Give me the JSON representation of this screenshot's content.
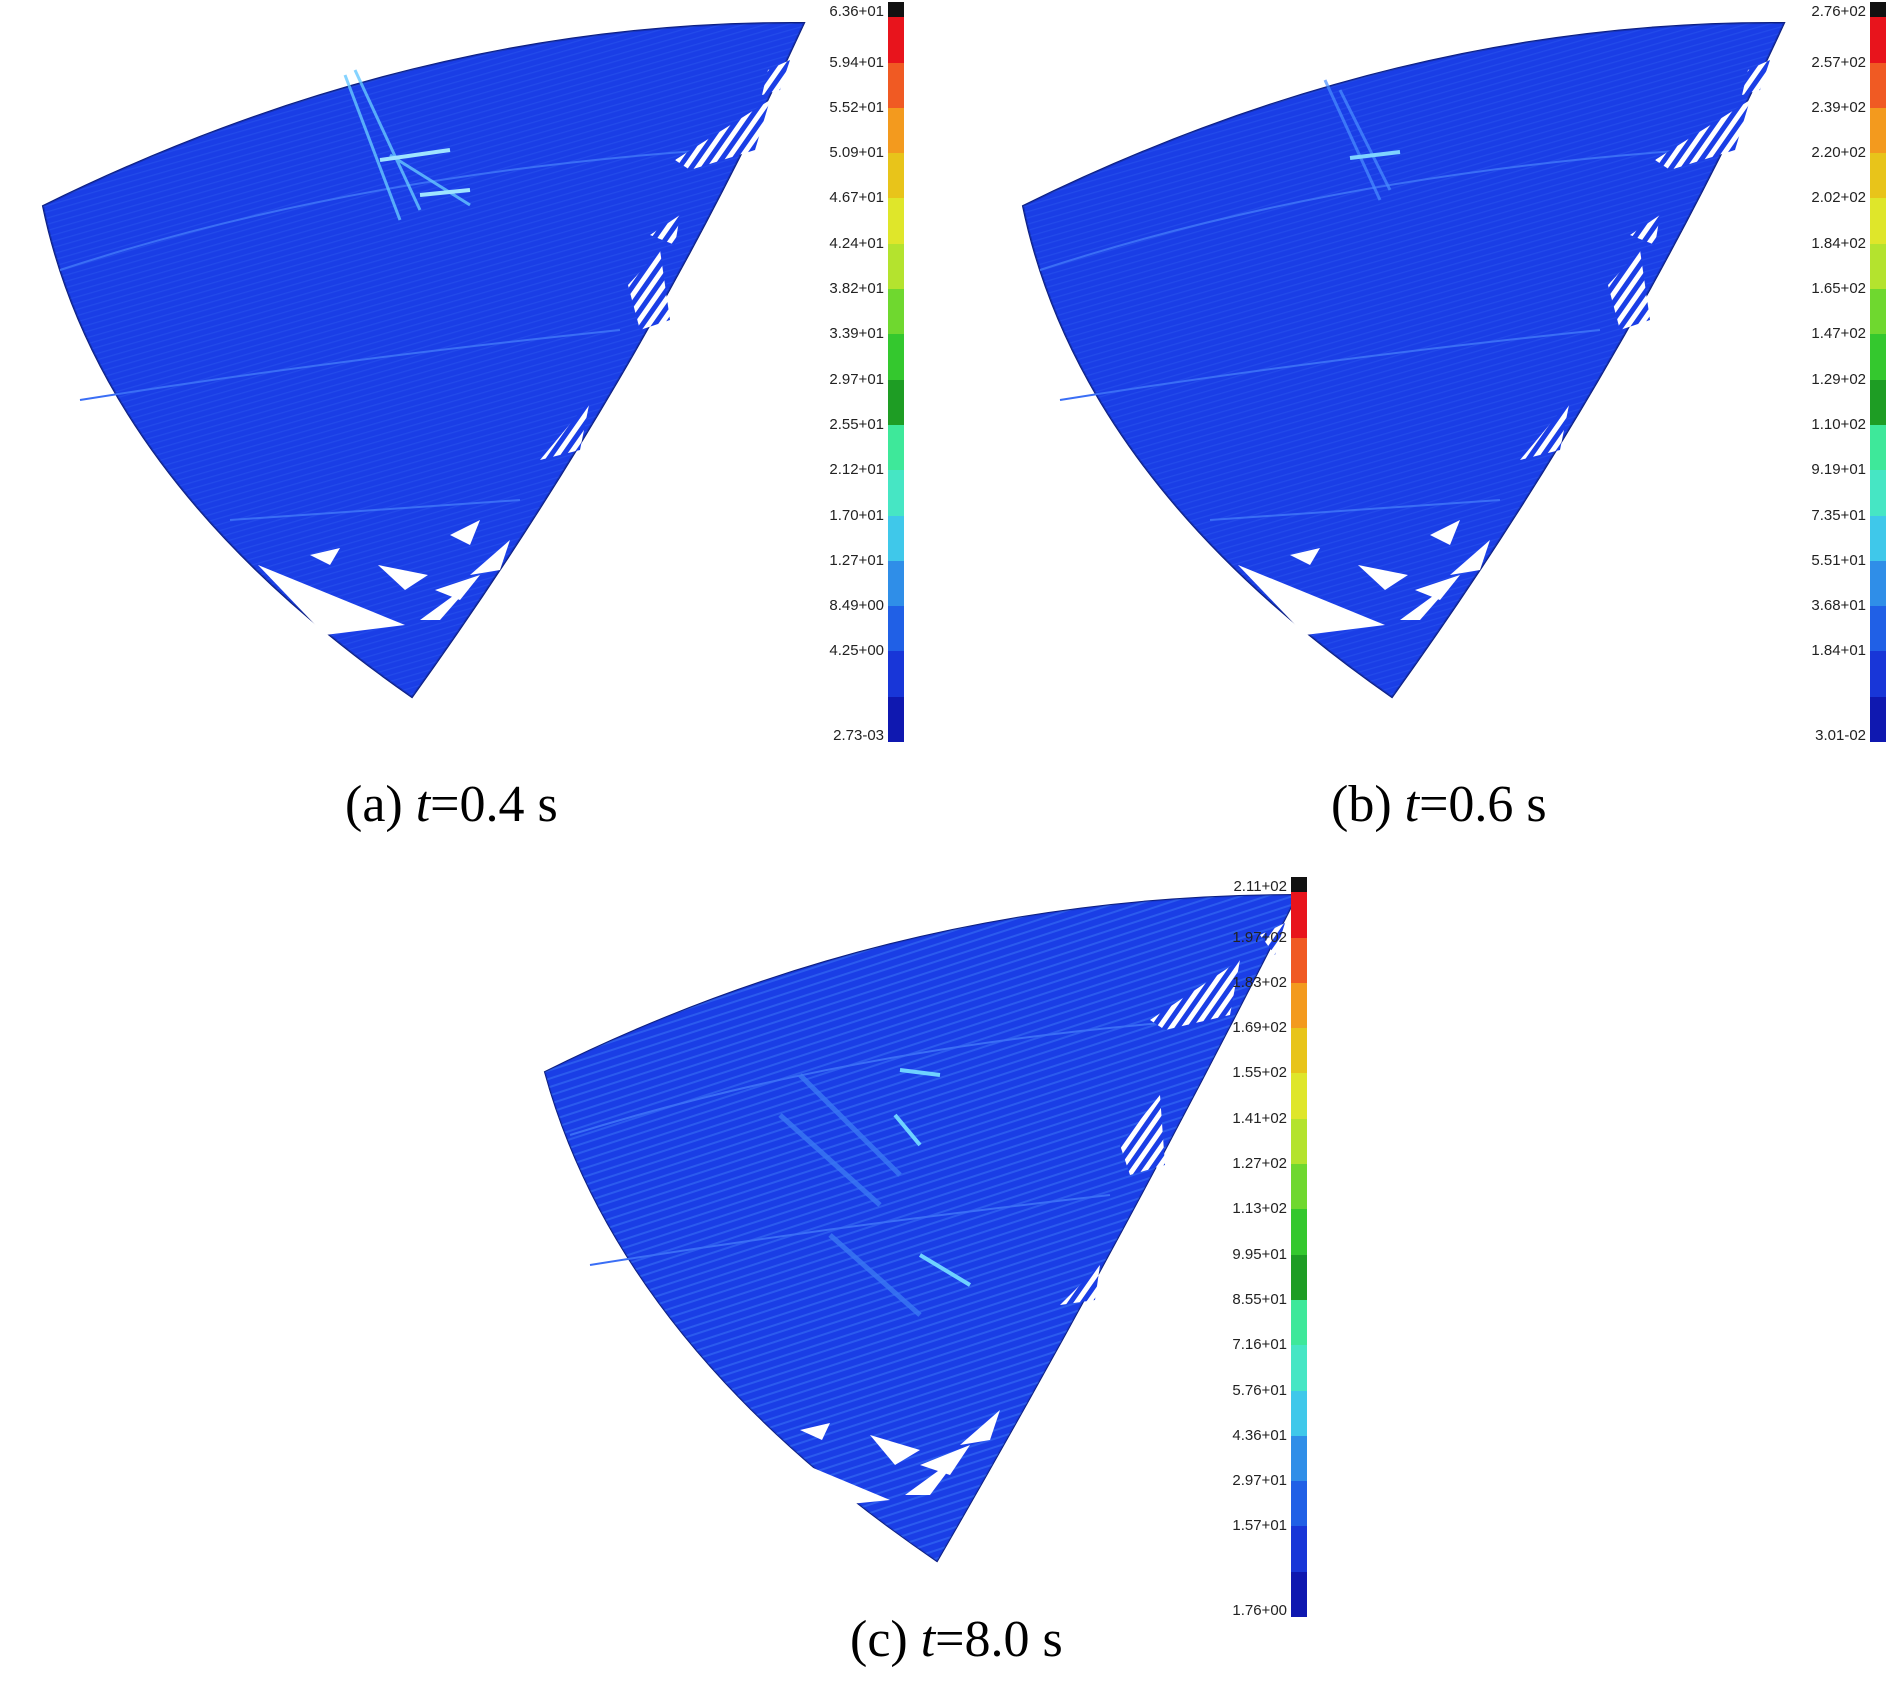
{
  "panels": [
    {
      "caption": {
        "prefix": "(a) ",
        "var": "t",
        "value": "=0.4 s"
      },
      "legend": [
        "6.36+01",
        "5.94+01",
        "5.52+01",
        "5.09+01",
        "4.67+01",
        "4.24+01",
        "3.82+01",
        "3.39+01",
        "2.97+01",
        "2.55+01",
        "2.12+01",
        "1.70+01",
        "1.27+01",
        "8.49+00",
        "4.25+00",
        "2.73-03"
      ]
    },
    {
      "caption": {
        "prefix": "(b) ",
        "var": "t",
        "value": "=0.6 s"
      },
      "legend": [
        "2.76+02",
        "2.57+02",
        "2.39+02",
        "2.20+02",
        "2.02+02",
        "1.84+02",
        "1.65+02",
        "1.47+02",
        "1.29+02",
        "1.10+02",
        "9.19+01",
        "7.35+01",
        "5.51+01",
        "3.68+01",
        "1.84+01",
        "3.01-02"
      ]
    },
    {
      "caption": {
        "prefix": "(c) ",
        "var": "t",
        "value": "=8.0 s"
      },
      "legend": [
        "2.11+02",
        "1.97+02",
        "1.83+02",
        "1.69+02",
        "1.55+02",
        "1.41+02",
        "1.27+02",
        "1.13+02",
        "9.95+01",
        "8.55+01",
        "7.16+01",
        "5.76+01",
        "4.36+01",
        "2.97+01",
        "1.57+01",
        "1.76+00"
      ]
    }
  ],
  "colors": {
    "scale_top_to_bottom": [
      "#111111",
      "#e8141c",
      "#f05a23",
      "#f39a1e",
      "#e8c41a",
      "#dfe62a",
      "#b4e32e",
      "#6fd82f",
      "#34c82e",
      "#1e9d24",
      "#3ee89a",
      "#46e6c4",
      "#3fc8ea",
      "#2f8ee8",
      "#2060e6",
      "#1836d8",
      "#0f18b0"
    ],
    "surface": "#1a3ee6",
    "surface_light": "#2f6ef0",
    "highlight": "#66c8ff"
  }
}
